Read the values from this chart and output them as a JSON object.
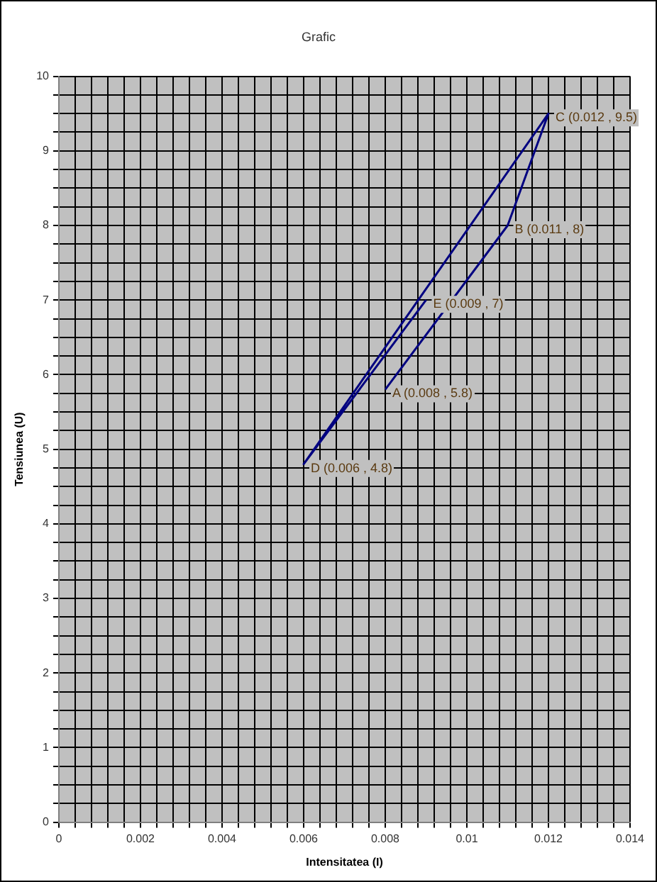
{
  "chart_data": {
    "type": "line",
    "title": "Grafic",
    "xlabel": "Intensitatea (I)",
    "ylabel": "Tensiunea (U)",
    "x": [
      0.008,
      0.011,
      0.012,
      0.006,
      0.009
    ],
    "series": [
      {
        "color": "#000080",
        "values": [
          5.8,
          8,
          9.5,
          4.8,
          7
        ]
      }
    ],
    "marker": "none",
    "grid": true,
    "legend": false,
    "xlim": [
      0,
      0.014
    ],
    "ylim": [
      0,
      10
    ],
    "xticks": [
      0,
      {
        "value": 0.0004,
        "label": null
      },
      {
        "value": 0.0008,
        "label": null
      },
      {
        "value": 0.0012,
        "label": null
      },
      {
        "value": 0.0016,
        "label": null
      },
      0.002,
      {
        "value": 0.0024,
        "label": null
      },
      {
        "value": 0.0028,
        "label": null
      },
      {
        "value": 0.0032,
        "label": null
      },
      {
        "value": 0.0036,
        "label": null
      },
      0.004,
      {
        "value": 0.0044,
        "label": null
      },
      {
        "value": 0.0048,
        "label": null
      },
      {
        "value": 0.0052,
        "label": null
      },
      {
        "value": 0.0056,
        "label": null
      },
      0.006,
      {
        "value": 0.0064,
        "label": null
      },
      {
        "value": 0.0068,
        "label": null
      },
      {
        "value": 0.0072,
        "label": null
      },
      {
        "value": 0.0076,
        "label": null
      },
      0.008,
      {
        "value": 0.0084,
        "label": null
      },
      {
        "value": 0.0088,
        "label": null
      },
      {
        "value": 0.0092,
        "label": null
      },
      {
        "value": 0.0096,
        "label": null
      },
      0.01,
      {
        "value": 0.0104,
        "label": null
      },
      {
        "value": 0.0108,
        "label": null
      },
      {
        "value": 0.0112,
        "label": null
      },
      {
        "value": 0.0116,
        "label": null
      },
      0.012,
      {
        "value": 0.0124,
        "label": null
      },
      {
        "value": 0.0128,
        "label": null
      },
      {
        "value": 0.0132,
        "label": null
      },
      {
        "value": 0.0136,
        "label": null
      },
      0.014
    ],
    "yticks": [
      0,
      {
        "value": 0.25,
        "label": null
      },
      {
        "value": 0.5,
        "label": null
      },
      {
        "value": 0.75,
        "label": null
      },
      1,
      {
        "value": 1.25,
        "label": null
      },
      {
        "value": 1.5,
        "label": null
      },
      {
        "value": 1.75,
        "label": null
      },
      2,
      {
        "value": 2.25,
        "label": null
      },
      {
        "value": 2.5,
        "label": null
      },
      {
        "value": 2.75,
        "label": null
      },
      3,
      {
        "value": 3.25,
        "label": null
      },
      {
        "value": 3.5,
        "label": null
      },
      {
        "value": 3.75,
        "label": null
      },
      4,
      {
        "value": 4.25,
        "label": null
      },
      {
        "value": 4.5,
        "label": null
      },
      {
        "value": 4.75,
        "label": null
      },
      5,
      {
        "value": 5.25,
        "label": null
      },
      {
        "value": 5.5,
        "label": null
      },
      {
        "value": 5.75,
        "label": null
      },
      6,
      {
        "value": 6.25,
        "label": null
      },
      {
        "value": 6.5,
        "label": null
      },
      {
        "value": 6.75,
        "label": null
      },
      7,
      {
        "value": 7.25,
        "label": null
      },
      {
        "value": 7.5,
        "label": null
      },
      {
        "value": 7.75,
        "label": null
      },
      8,
      {
        "value": 8.25,
        "label": null
      },
      {
        "value": 8.5,
        "label": null
      },
      {
        "value": 8.75,
        "label": null
      },
      9,
      {
        "value": 9.25,
        "label": null
      },
      {
        "value": 9.5,
        "label": null
      },
      {
        "value": 9.75,
        "label": null
      },
      10
    ],
    "annotations": [
      {
        "text": "A (0.008 , 5.8)",
        "x": 0.008,
        "y": 5.8
      },
      {
        "text": "B (0.011 , 8)",
        "x": 0.011,
        "y": 8
      },
      {
        "text": "C (0.012 , 9.5)",
        "x": 0.012,
        "y": 9.5
      },
      {
        "text": "D (0.006 , 4.8)",
        "x": 0.006,
        "y": 4.8
      },
      {
        "text": "E (0.009 , 7)",
        "x": 0.009,
        "y": 7
      }
    ]
  }
}
